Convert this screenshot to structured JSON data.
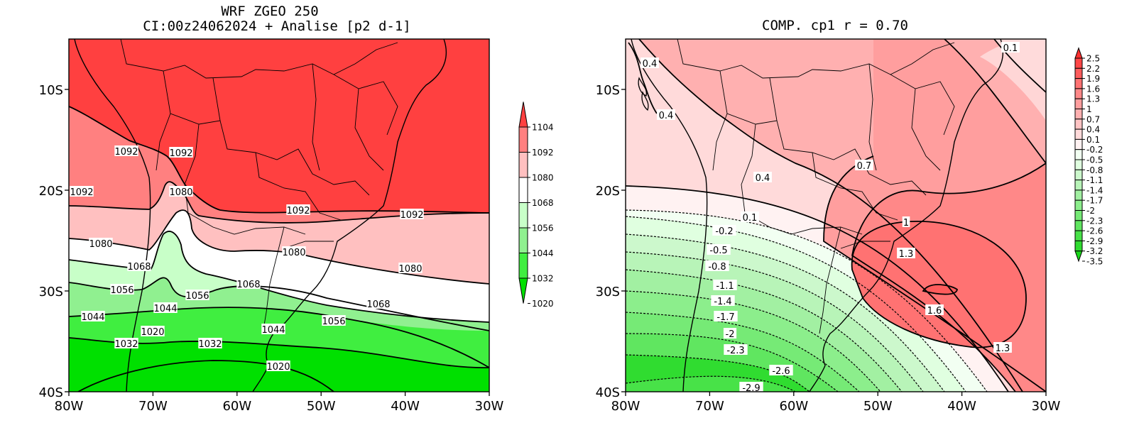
{
  "left_panel": {
    "title_line1": "WRF ZGEO 250",
    "title_line2": "CI:00z24062024 + Analise  [p2 d-1]",
    "y_ticks": [
      "10S",
      "20S",
      "30S",
      "40S"
    ],
    "x_ticks": [
      "80W",
      "70W",
      "60W",
      "50W",
      "40W",
      "30W"
    ],
    "colorbar_labels": [
      "1104",
      "1092",
      "1080",
      "1068",
      "1056",
      "1044",
      "1032",
      "1020"
    ],
    "colorbar_colors": [
      "#ff4040",
      "#ff8080",
      "#ffc0c0",
      "#ffffff",
      "#c8ffc8",
      "#90f090",
      "#40ee40",
      "#00e000"
    ],
    "contour_labels": [
      "1092",
      "1092",
      "1092",
      "1080",
      "1092",
      "1092",
      "1080",
      "1080",
      "1080",
      "1068",
      "1068",
      "1068",
      "1056",
      "1056",
      "1056",
      "1044",
      "1044",
      "1044",
      "1020",
      "1032",
      "1032",
      "1020"
    ]
  },
  "right_panel": {
    "title": "COMP. cp1   r =  0.70",
    "y_ticks": [
      "10S",
      "20S",
      "30S",
      "40S"
    ],
    "x_ticks": [
      "80W",
      "70W",
      "60W",
      "50W",
      "40W",
      "30W"
    ],
    "colorbar_labels": [
      "2.5",
      "2.2",
      "1.9",
      "1.6",
      "1.3",
      "1",
      "0.7",
      "0.4",
      "0.1",
      "-0.2",
      "-0.5",
      "-0.8",
      "-1.1",
      "-1.4",
      "-1.7",
      "-2",
      "-2.3",
      "-2.6",
      "-2.9",
      "-3.2",
      "-3.5"
    ],
    "colorbar_colors": [
      "#ff3030",
      "#ff4646",
      "#ff5c5c",
      "#ff7272",
      "#ff8888",
      "#ff9e9e",
      "#ffb0b0",
      "#ffc4c4",
      "#ffdada",
      "#fff2f2",
      "#f2fff2",
      "#e0ffe0",
      "#ccf8cc",
      "#b8f4b8",
      "#a2f0a2",
      "#8cee8c",
      "#76ea76",
      "#60e660",
      "#48e248",
      "#30dc30",
      "#18d818"
    ],
    "contour_labels": [
      "0.4",
      "0.4",
      "0.1",
      "0.4",
      "0.7",
      "0.1",
      "-0.2",
      "-0.5",
      "-0.8",
      "-1.1",
      "-1.4",
      "-1.7",
      "-2",
      "-2.3",
      "-2.6",
      "-2.9",
      "1",
      "1.3",
      "1.6",
      "1.3"
    ]
  }
}
